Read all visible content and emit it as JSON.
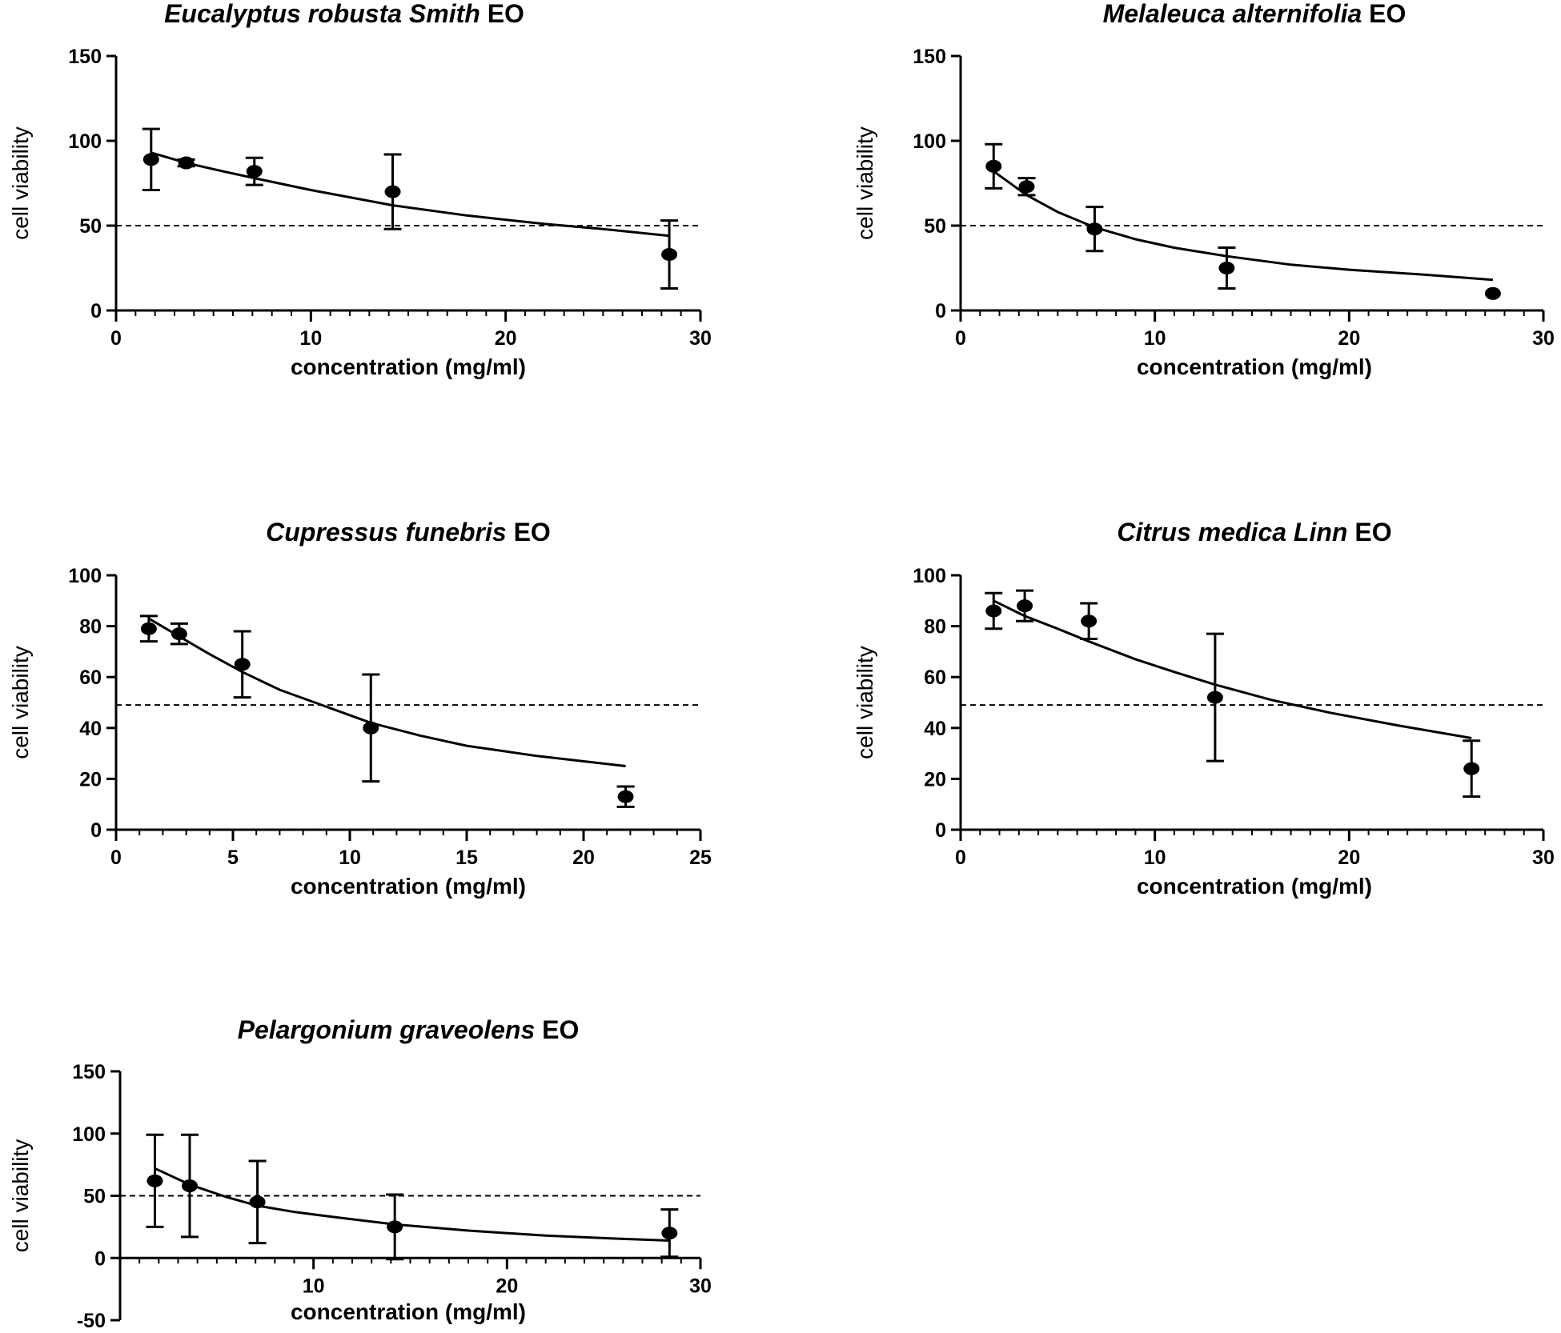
{
  "figure": {
    "description_units": "cell viability vs concentration (mg/ml)"
  },
  "chart_data": [
    {
      "type": "scatter",
      "title_italic": "Eucalyptus robusta Smith",
      "title_suffix": " EO",
      "xlabel": "concentration (mg/ml)",
      "ylabel": "cell viability",
      "xlim": [
        0,
        30
      ],
      "ylim": [
        0,
        150
      ],
      "xticks": [
        0,
        10,
        20,
        30
      ],
      "xtick_labels": [
        "0",
        "10",
        "20",
        "30"
      ],
      "yticks": [
        0,
        50,
        100,
        150
      ],
      "ytick_labels": [
        "0",
        "50",
        "100",
        "150"
      ],
      "reference_line": 50,
      "points": [
        {
          "x": 1.8,
          "y": 89,
          "err": 18
        },
        {
          "x": 3.6,
          "y": 87,
          "err": 2
        },
        {
          "x": 7.1,
          "y": 82,
          "err": 8
        },
        {
          "x": 14.2,
          "y": 70,
          "err": 22
        },
        {
          "x": 28.4,
          "y": 33,
          "err": 20
        }
      ],
      "fit_curve": [
        [
          1.8,
          93
        ],
        [
          3.6,
          87
        ],
        [
          5.5,
          82
        ],
        [
          7.1,
          78
        ],
        [
          10,
          71
        ],
        [
          14.2,
          62
        ],
        [
          18,
          56
        ],
        [
          22,
          51
        ],
        [
          25,
          48
        ],
        [
          28.4,
          44
        ]
      ]
    },
    {
      "type": "scatter",
      "title_italic": "Melaleuca  alternifolia",
      "title_suffix": " EO",
      "xlabel": "concentration (mg/ml)",
      "ylabel": "cell viability",
      "xlim": [
        0,
        30
      ],
      "ylim": [
        0,
        150
      ],
      "xticks": [
        0,
        10,
        20,
        30
      ],
      "xtick_labels": [
        "0",
        "10",
        "20",
        "30"
      ],
      "yticks": [
        0,
        50,
        100,
        150
      ],
      "ytick_labels": [
        "0",
        "50",
        "100",
        "150"
      ],
      "reference_line": 50,
      "points": [
        {
          "x": 1.7,
          "y": 85,
          "err": 13
        },
        {
          "x": 3.4,
          "y": 73,
          "err": 5
        },
        {
          "x": 6.9,
          "y": 48,
          "err": 13
        },
        {
          "x": 13.7,
          "y": 25,
          "err": 12
        },
        {
          "x": 27.4,
          "y": 10,
          "err": 0
        }
      ],
      "fit_curve": [
        [
          1.7,
          82
        ],
        [
          3.4,
          68
        ],
        [
          5,
          58
        ],
        [
          6.9,
          49
        ],
        [
          9,
          42
        ],
        [
          11,
          37
        ],
        [
          13.7,
          32
        ],
        [
          17,
          27
        ],
        [
          20,
          24
        ],
        [
          24,
          21
        ],
        [
          27.4,
          18
        ]
      ]
    },
    {
      "type": "scatter",
      "title_italic": "Cupressus funebris",
      "title_suffix": " EO",
      "xlabel": "concentration (mg/ml)",
      "ylabel": "cell viability",
      "xlim": [
        0,
        25
      ],
      "ylim": [
        0,
        100
      ],
      "xticks": [
        0,
        5,
        10,
        15,
        20,
        25
      ],
      "xtick_labels": [
        "0",
        "5",
        "10",
        "15",
        "20",
        "25"
      ],
      "yticks": [
        0,
        20,
        40,
        60,
        80,
        100
      ],
      "ytick_labels": [
        "0",
        "20",
        "40",
        "60",
        "80",
        "100"
      ],
      "reference_line": 49,
      "points": [
        {
          "x": 1.4,
          "y": 79,
          "err": 5
        },
        {
          "x": 2.7,
          "y": 77,
          "err": 4
        },
        {
          "x": 5.4,
          "y": 65,
          "err": 13
        },
        {
          "x": 10.9,
          "y": 40,
          "err": 21
        },
        {
          "x": 21.8,
          "y": 13,
          "err": 4
        }
      ],
      "fit_curve": [
        [
          1.4,
          83
        ],
        [
          2.7,
          76
        ],
        [
          4,
          69
        ],
        [
          5.4,
          62
        ],
        [
          7,
          55
        ],
        [
          8.5,
          50
        ],
        [
          10.9,
          42
        ],
        [
          13,
          37
        ],
        [
          15,
          33
        ],
        [
          18,
          29
        ],
        [
          21.8,
          25
        ]
      ]
    },
    {
      "type": "scatter",
      "title_italic": "Citrus medica Linn",
      "title_suffix": " EO",
      "xlabel": "concentration (mg/ml)",
      "ylabel": "cell viability",
      "xlim": [
        0,
        30
      ],
      "ylim": [
        0,
        100
      ],
      "xticks": [
        0,
        10,
        20,
        30
      ],
      "xtick_labels": [
        "0",
        "10",
        "20",
        "30"
      ],
      "yticks": [
        0,
        20,
        40,
        60,
        80,
        100
      ],
      "ytick_labels": [
        "0",
        "20",
        "40",
        "60",
        "80",
        "100"
      ],
      "reference_line": 49,
      "points": [
        {
          "x": 1.7,
          "y": 86,
          "err": 7
        },
        {
          "x": 3.3,
          "y": 88,
          "err": 6
        },
        {
          "x": 6.6,
          "y": 82,
          "err": 7
        },
        {
          "x": 13.1,
          "y": 52,
          "err": 25
        },
        {
          "x": 26.3,
          "y": 24,
          "err": 11
        }
      ],
      "fit_curve": [
        [
          1.7,
          90
        ],
        [
          3.3,
          84
        ],
        [
          5,
          79
        ],
        [
          6.6,
          74
        ],
        [
          9,
          67
        ],
        [
          11,
          62
        ],
        [
          13.1,
          57
        ],
        [
          16,
          51
        ],
        [
          19,
          46
        ],
        [
          22.5,
          41
        ],
        [
          26.3,
          36
        ]
      ]
    },
    {
      "type": "scatter",
      "title_italic": "Pelargonium graveolens",
      "title_suffix": " EO",
      "xlabel": "concentration (mg/ml)",
      "ylabel": "cell viability",
      "xlim": [
        0,
        30
      ],
      "ylim": [
        -50,
        150
      ],
      "xticks": [
        10,
        20,
        30
      ],
      "xtick_labels": [
        "10",
        "20",
        "30"
      ],
      "yticks": [
        -50,
        0,
        50,
        100,
        150
      ],
      "ytick_labels": [
        "-50",
        "0",
        "50",
        "100",
        "150"
      ],
      "reference_line": 50,
      "points": [
        {
          "x": 1.8,
          "y": 62,
          "err": 37
        },
        {
          "x": 3.6,
          "y": 58,
          "err": 41
        },
        {
          "x": 7.1,
          "y": 45,
          "err": 33
        },
        {
          "x": 14.2,
          "y": 25,
          "err": 26
        },
        {
          "x": 28.4,
          "y": 20,
          "err": 19
        }
      ],
      "fit_curve": [
        [
          1.8,
          72
        ],
        [
          3.6,
          59
        ],
        [
          5.5,
          49
        ],
        [
          7.1,
          42
        ],
        [
          9,
          37
        ],
        [
          11,
          33
        ],
        [
          14.2,
          27
        ],
        [
          18,
          22
        ],
        [
          22,
          18
        ],
        [
          25,
          16
        ],
        [
          28.4,
          14
        ]
      ]
    }
  ]
}
